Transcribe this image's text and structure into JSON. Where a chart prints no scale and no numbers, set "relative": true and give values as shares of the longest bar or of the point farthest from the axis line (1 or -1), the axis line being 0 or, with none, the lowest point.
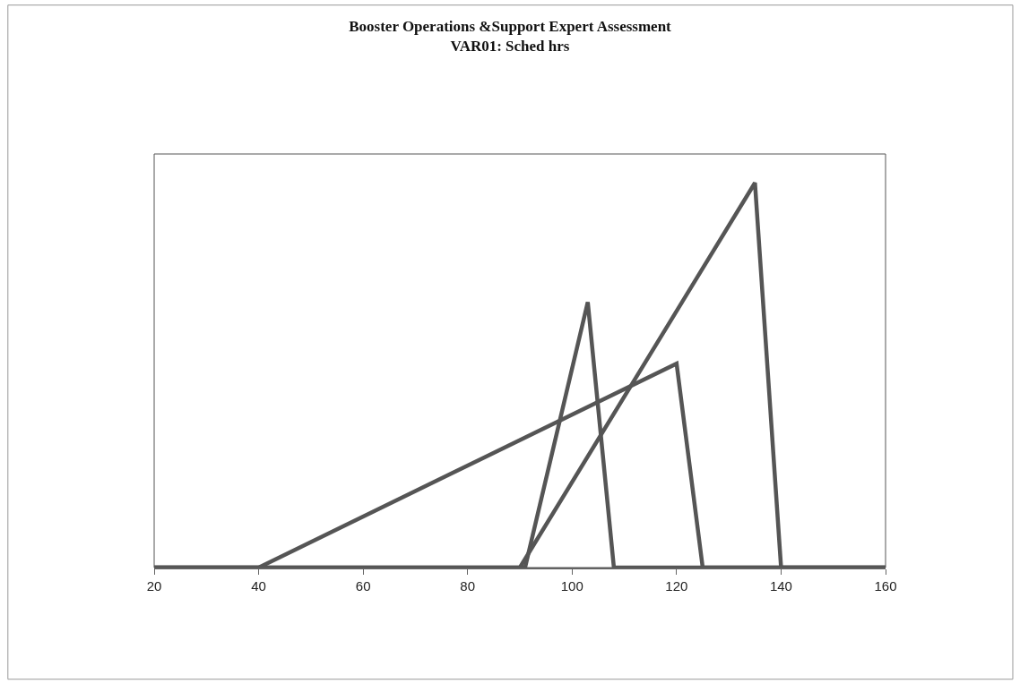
{
  "chart_data": {
    "type": "line",
    "title": "Booster Operations &Support Expert Assessment\nVAR01: Sched hrs",
    "relative": true,
    "xlim": [
      20,
      160
    ],
    "xticks": [
      20,
      40,
      60,
      80,
      100,
      120,
      140,
      160
    ],
    "series": [
      {
        "color": "#555555",
        "x": [
          20,
          40,
          120,
          125,
          160
        ],
        "values": [
          0,
          0,
          0.53,
          0,
          0
        ]
      },
      {
        "color": "#555555",
        "x": [
          20,
          91,
          103,
          108,
          160
        ],
        "values": [
          0,
          0,
          0.69,
          0,
          0
        ]
      },
      {
        "color": "#555555",
        "x": [
          20,
          90,
          135,
          140,
          160
        ],
        "values": [
          0,
          0,
          1,
          0,
          0
        ]
      }
    ],
    "grid": false,
    "marker": "none",
    "line_style": "solid"
  }
}
